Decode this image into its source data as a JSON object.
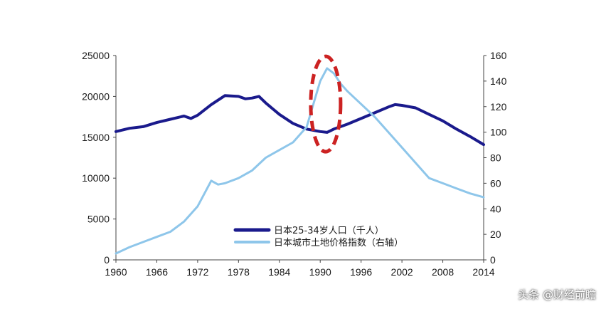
{
  "chart_data": {
    "type": "line",
    "x_ticks": [
      "1960",
      "1966",
      "1972",
      "1978",
      "1984",
      "1990",
      "1996",
      "2002",
      "2008",
      "2014"
    ],
    "y_left_ticks": [
      "0",
      "5000",
      "10000",
      "15000",
      "20000",
      "25000"
    ],
    "y_right_ticks": [
      "0",
      "20",
      "40",
      "60",
      "80",
      "100",
      "120",
      "140",
      "160"
    ],
    "ylim_left": [
      0,
      25000
    ],
    "ylim_right": [
      0,
      160
    ],
    "xlim": [
      1960,
      2014
    ],
    "grid": false,
    "legend_position": "bottom-center",
    "series": [
      {
        "name": "日本25-34岁人口（千人）",
        "axis": "left",
        "color": "#1a1a8c",
        "x": [
          1960,
          1962,
          1964,
          1966,
          1968,
          1970,
          1971,
          1972,
          1974,
          1976,
          1978,
          1979,
          1980,
          1981,
          1982,
          1984,
          1986,
          1988,
          1990,
          1991,
          1992,
          1994,
          1996,
          1998,
          2000,
          2001,
          2002,
          2004,
          2006,
          2008,
          2010,
          2012,
          2014
        ],
        "y": [
          15700,
          16100,
          16300,
          16800,
          17200,
          17600,
          17300,
          17700,
          19000,
          20100,
          20000,
          19700,
          19800,
          20000,
          19200,
          17800,
          16700,
          16000,
          15700,
          15600,
          16000,
          16600,
          17300,
          18000,
          18700,
          19000,
          18900,
          18600,
          17800,
          17000,
          16000,
          15100,
          14100
        ]
      },
      {
        "name": "日本城市土地价格指数（右轴）",
        "axis": "right",
        "color": "#8ec6ea",
        "x": [
          1960,
          1962,
          1964,
          1966,
          1968,
          1970,
          1972,
          1973,
          1974,
          1975,
          1976,
          1978,
          1980,
          1982,
          1984,
          1986,
          1988,
          1989,
          1990,
          1991,
          1992,
          1993,
          1994,
          1996,
          1998,
          2000,
          2002,
          2004,
          2006,
          2008,
          2010,
          2012,
          2014
        ],
        "y": [
          5,
          10,
          14,
          18,
          22,
          30,
          42,
          52,
          62,
          59,
          60,
          64,
          70,
          80,
          86,
          92,
          104,
          122,
          140,
          150,
          146,
          138,
          132,
          122,
          112,
          100,
          88,
          76,
          64,
          60,
          56,
          52,
          49
        ]
      }
    ],
    "annotations": [
      {
        "type": "dashed-ellipse",
        "color": "#cc2222",
        "x_center": 1990.8,
        "y_right_center": 122
      }
    ]
  },
  "watermark": "头条 @财经前瞻"
}
